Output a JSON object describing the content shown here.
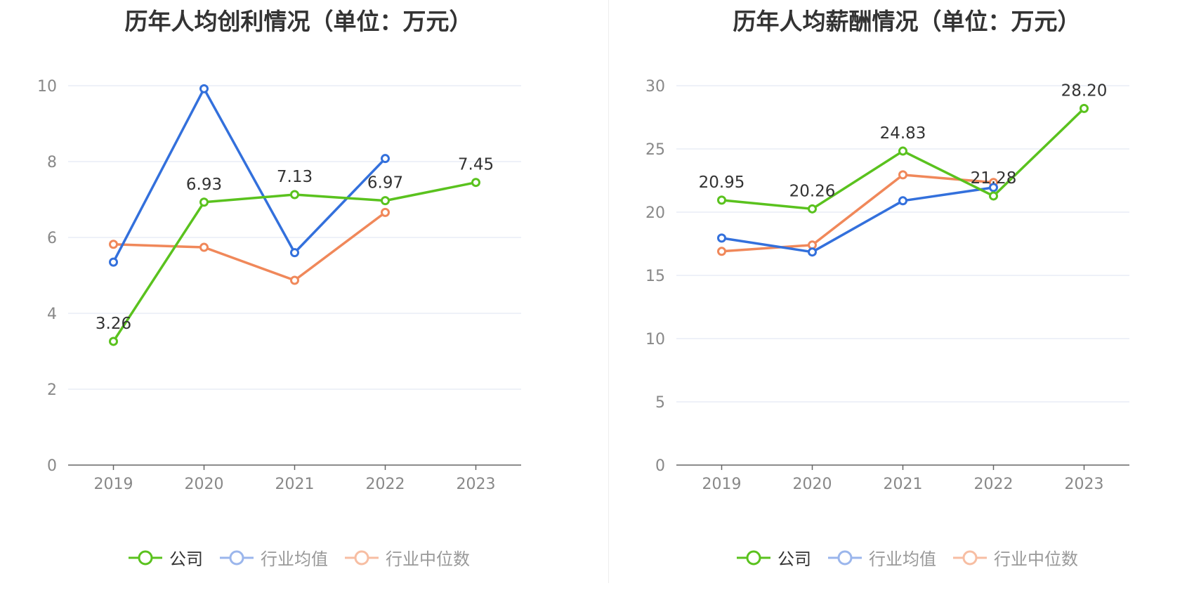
{
  "chart_data": [
    {
      "type": "line",
      "title": "历年人均创利情况（单位：万元）",
      "categories": [
        "2019",
        "2020",
        "2021",
        "2022",
        "2023"
      ],
      "ylim": [
        0,
        10
      ],
      "yticks": [
        0,
        2,
        4,
        6,
        8,
        10
      ],
      "grid": true,
      "legend_position": "bottom",
      "series": [
        {
          "name": "公司",
          "color": "#5ac21e",
          "values": [
            3.26,
            6.93,
            7.13,
            6.97,
            7.45
          ],
          "labels": [
            "3.26",
            "6.93",
            "7.13",
            "6.97",
            "7.45"
          ]
        },
        {
          "name": "行业均值",
          "color": "#3370dc",
          "values": [
            5.35,
            9.92,
            5.6,
            8.08,
            null
          ]
        },
        {
          "name": "行业中位数",
          "color": "#f0885a",
          "values": [
            5.82,
            5.74,
            4.87,
            6.66,
            null
          ]
        }
      ]
    },
    {
      "type": "line",
      "title": "历年人均薪酬情况（单位：万元）",
      "categories": [
        "2019",
        "2020",
        "2021",
        "2022",
        "2023"
      ],
      "ylim": [
        0,
        30
      ],
      "yticks": [
        0,
        5,
        10,
        15,
        20,
        25,
        30
      ],
      "grid": true,
      "legend_position": "bottom",
      "series": [
        {
          "name": "公司",
          "color": "#5ac21e",
          "values": [
            20.95,
            20.26,
            24.83,
            21.28,
            28.2
          ],
          "labels": [
            "20.95",
            "20.26",
            "24.83",
            "21.28",
            "28.20"
          ]
        },
        {
          "name": "行业均值",
          "color": "#3370dc",
          "values": [
            17.95,
            16.85,
            20.9,
            21.95,
            null
          ]
        },
        {
          "name": "行业中位数",
          "color": "#f0885a",
          "values": [
            16.9,
            17.4,
            22.95,
            22.35,
            null
          ]
        }
      ]
    }
  ],
  "legend": {
    "company": "公司",
    "industry_avg": "行业均值",
    "industry_median": "行业中位数"
  }
}
